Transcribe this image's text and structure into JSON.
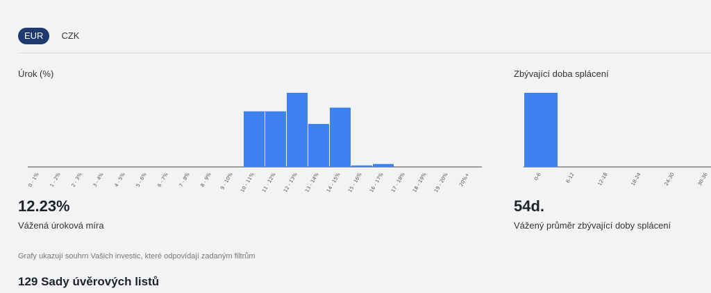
{
  "currency_tabs": [
    {
      "label": "EUR",
      "active": true
    },
    {
      "label": "CZK",
      "active": false
    }
  ],
  "colors": {
    "bar": "#3e82f1",
    "axis": "#444444",
    "active_tab": "#1e3a6e"
  },
  "chart_data": [
    {
      "type": "bar",
      "title": "Úrok (%)",
      "categories": [
        "0 - 1%",
        "1 - 2%",
        "2 - 3%",
        "3 - 4%",
        "4 - 5%",
        "5 - 6%",
        "6 - 7%",
        "7 - 8%",
        "8 - 9%",
        "9 - 10%",
        "10 - 11%",
        "11 - 12%",
        "12 - 13%",
        "13 - 14%",
        "14 - 15%",
        "15 - 16%",
        "16 - 17%",
        "17 - 18%",
        "18 - 19%",
        "19 - 20%",
        "20%+"
      ],
      "values": [
        0,
        0,
        0,
        0,
        0,
        0,
        0,
        0,
        0,
        0,
        0.75,
        0.75,
        1.0,
        0.58,
        0.8,
        0.02,
        0.04,
        0,
        0,
        0,
        0
      ],
      "ylim": [
        0,
        1
      ],
      "grid": false
    },
    {
      "type": "bar",
      "title": "Zbývající doba splácení",
      "categories": [
        "0-6",
        "6-12",
        "12-18",
        "18-24",
        "24-30",
        "30-36"
      ],
      "values": [
        1.0,
        0,
        0,
        0,
        0,
        0
      ],
      "ylim": [
        0,
        1
      ],
      "grid": false
    }
  ],
  "stats": {
    "interest_value": "12.23%",
    "interest_label": "Vážená úroková míra",
    "term_value": "54d.",
    "term_label": "Vážený průměr zbývající doby splácení"
  },
  "footnote": "Grafy ukazují souhrn Vašich investic, které odpovídají zadaným filtrům",
  "loan_sets_title": "129 Sady úvěrových listů"
}
